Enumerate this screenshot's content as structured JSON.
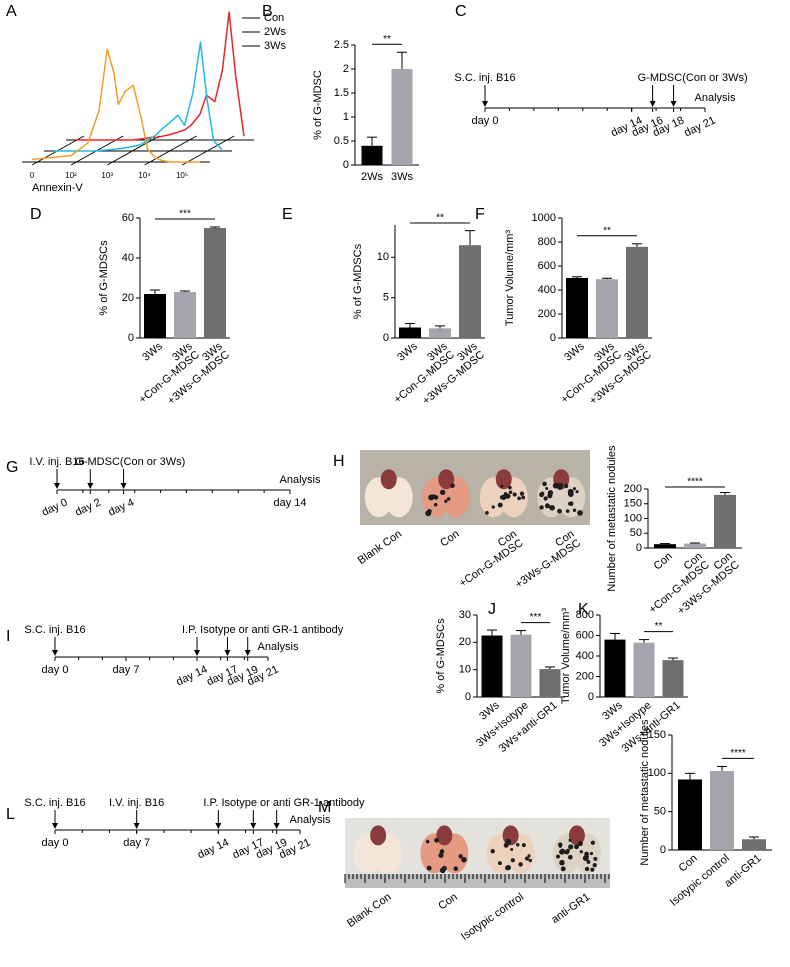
{
  "chart_data": [
    {
      "type": "line",
      "panel": "A",
      "xlabel": "Annexin-V",
      "xscale": "symlog",
      "xlim": [
        0,
        300000
      ],
      "ylim": [
        0,
        100
      ],
      "grid": true,
      "legend": "top-right",
      "xticks": [
        0,
        {
          "value": 100,
          "label": "10²"
        },
        {
          "value": 1000,
          "label": "10³"
        },
        {
          "value": 10000,
          "label": "10⁴"
        },
        {
          "value": 100000,
          "label": "10⁵"
        }
      ],
      "x": [
        0,
        100,
        300,
        600,
        1000,
        1500,
        2000,
        3000,
        5000,
        8000,
        12000,
        20000,
        30000,
        50000,
        80000,
        120000,
        180000,
        300000
      ],
      "series": [
        {
          "name": "Con",
          "color": "#e8262a",
          "values": [
            0,
            0,
            0,
            1,
            2,
            2,
            3,
            4,
            6,
            8,
            12,
            20,
            35,
            30,
            55,
            100,
            50,
            3
          ]
        },
        {
          "name": "2Ws",
          "color": "#22b8e6",
          "values": [
            0,
            0,
            1,
            2,
            3,
            4,
            5,
            8,
            12,
            18,
            22,
            28,
            20,
            45,
            85,
            40,
            8,
            1
          ]
        },
        {
          "name": "3Ws",
          "color": "#f29d2a",
          "values": [
            2,
            5,
            15,
            40,
            88,
            70,
            45,
            55,
            60,
            35,
            10,
            3,
            1,
            0,
            0,
            0,
            0,
            0
          ]
        }
      ]
    },
    {
      "type": "bar",
      "panel": "B",
      "ylabel": "% of G-MDSC",
      "categories": [
        [
          "2Ws"
        ],
        [
          "3Ws"
        ]
      ],
      "values": [
        0.4,
        2.0
      ],
      "errors": [
        0.18,
        0.35
      ],
      "colors": [
        "#000000",
        "#a5a5ad"
      ],
      "ylim": [
        0,
        2.5
      ],
      "yticks": [
        0,
        0.5,
        1,
        1.5,
        2,
        2.5
      ],
      "significance": [
        {
          "label": "**",
          "between": [
            0,
            1
          ]
        }
      ]
    },
    {
      "type": "bar",
      "panel": "D",
      "ylabel": "% of G-MDSCs",
      "categories": [
        [
          "3Ws"
        ],
        [
          "3Ws",
          "+Con-G-MDSC"
        ],
        [
          "3Ws",
          "+3Ws-G-MDSC"
        ]
      ],
      "values": [
        22,
        23,
        55
      ],
      "errors": [
        2,
        0.5,
        0.5
      ],
      "colors": [
        "#000000",
        "#a5a5ad",
        "#6f6f6f"
      ],
      "ylim": [
        0,
        60
      ],
      "yticks": [
        0,
        20,
        40,
        60
      ],
      "significance": [
        {
          "label": "***",
          "between": [
            0,
            2
          ]
        }
      ]
    },
    {
      "type": "bar",
      "panel": "E",
      "ylabel": "% of G-MDSCs",
      "categories": [
        [
          "3Ws"
        ],
        [
          "3Ws",
          "+Con-G-MDSC"
        ],
        [
          "3Ws",
          "+3Ws-G-MDSC"
        ]
      ],
      "values": [
        1.3,
        1.2,
        11.5
      ],
      "errors": [
        0.5,
        0.3,
        1.8
      ],
      "colors": [
        "#000000",
        "#a5a5ad",
        "#6f6f6f"
      ],
      "ylim": [
        0,
        14
      ],
      "yticks": [
        0,
        5,
        10
      ],
      "significance": [
        {
          "label": "**",
          "between": [
            0,
            2
          ]
        }
      ]
    },
    {
      "type": "bar",
      "panel": "F",
      "ylabel": "Tumor Volume/mm³",
      "categories": [
        [
          "3Ws"
        ],
        [
          "3Ws",
          "+Con-G-MDSC"
        ],
        [
          "3Ws",
          "+3Ws-G-MDSC"
        ]
      ],
      "values": [
        500,
        490,
        760
      ],
      "errors": [
        10,
        8,
        25
      ],
      "colors": [
        "#000000",
        "#a5a5ad",
        "#6f6f6f"
      ],
      "ylim": [
        0,
        1000
      ],
      "yticks": [
        0,
        200,
        400,
        600,
        800,
        1000
      ],
      "significance": [
        {
          "label": "**",
          "between": [
            0,
            2
          ]
        }
      ]
    },
    {
      "type": "bar",
      "ylabel": "Number of metastatic nodules",
      "categories": [
        [
          "Con"
        ],
        [
          "Con",
          "+Con-G-MDSC"
        ],
        [
          "Con",
          "+3Ws-G-MDSC"
        ]
      ],
      "values": [
        13,
        15,
        180
      ],
      "errors": [
        2,
        2,
        8
      ],
      "colors": [
        "#000000",
        "#a5a5ad",
        "#6f6f6f"
      ],
      "ylim": [
        0,
        200
      ],
      "yticks": [
        0,
        50,
        100,
        150,
        200
      ],
      "significance": [
        {
          "label": "****",
          "between": [
            0,
            2
          ]
        }
      ]
    },
    {
      "type": "bar",
      "panel": "J",
      "ylabel": "% of G-MDSCs",
      "categories": [
        [
          "3Ws"
        ],
        [
          "3Ws+Isotype"
        ],
        [
          "3Ws+anti-GR1"
        ]
      ],
      "values": [
        22.5,
        22.8,
        10.2
      ],
      "errors": [
        2,
        1.5,
        0.8
      ],
      "colors": [
        "#000000",
        "#a5a5ad",
        "#6f6f6f"
      ],
      "ylim": [
        0,
        30
      ],
      "yticks": [
        0,
        10,
        20,
        30
      ],
      "significance": [
        {
          "label": "***",
          "between": [
            1,
            2
          ]
        }
      ]
    },
    {
      "type": "bar",
      "panel": "K",
      "ylabel": "Tumor Volume/mm³",
      "categories": [
        [
          "3Ws"
        ],
        [
          "3Ws+Isotype"
        ],
        [
          "3Ws+anti-GR1"
        ]
      ],
      "values": [
        560,
        530,
        360
      ],
      "errors": [
        60,
        30,
        20
      ],
      "colors": [
        "#000000",
        "#a5a5ad",
        "#6f6f6f"
      ],
      "ylim": [
        0,
        800
      ],
      "yticks": [
        0,
        200,
        400,
        600,
        800
      ],
      "significance": [
        {
          "label": "**",
          "between": [
            1,
            2
          ]
        }
      ]
    },
    {
      "type": "bar",
      "ylabel": "Number of metastatic nodules",
      "categories": [
        [
          "Con"
        ],
        [
          "Isotypic control"
        ],
        [
          "anti-GR1"
        ]
      ],
      "values": [
        92,
        103,
        14
      ],
      "errors": [
        8,
        6,
        3
      ],
      "colors": [
        "#000000",
        "#a5a5ad",
        "#6f6f6f"
      ],
      "ylim": [
        0,
        150
      ],
      "yticks": [
        0,
        50,
        100,
        150
      ],
      "significance": [
        {
          "label": "****",
          "between": [
            1,
            2
          ]
        }
      ]
    }
  ],
  "timelines": [
    {
      "panel": "C",
      "xlim": [
        0,
        21
      ],
      "end_label": "Analysis",
      "ticks": [
        {
          "value": 0,
          "label": "day 0"
        },
        {
          "value": 14,
          "label": "day 14"
        },
        {
          "value": 16,
          "label": "day 16"
        },
        {
          "value": 18,
          "label": "day 18"
        },
        {
          "value": 21,
          "label": "day 21"
        }
      ],
      "events": [
        {
          "label": "S.C. inj. B16",
          "days": [
            0
          ]
        },
        {
          "label": "G-MDSC(Con or 3Ws)",
          "days": [
            16,
            18
          ]
        }
      ]
    },
    {
      "panel": "G",
      "xlim": [
        0,
        14
      ],
      "end_label": "Analysis",
      "ticks": [
        {
          "value": 0,
          "label": "day 0"
        },
        {
          "value": 2,
          "label": "day 2"
        },
        {
          "value": 4,
          "label": "day 4"
        },
        {
          "value": 14,
          "label": "day 14"
        }
      ],
      "events": [
        {
          "label": "I.V. inj. B16",
          "days": [
            0
          ]
        },
        {
          "label": "G-MDSC(Con or 3Ws)",
          "days": [
            2,
            4
          ]
        }
      ]
    },
    {
      "panel": "I",
      "xlim": [
        0,
        21
      ],
      "end_label": "Analysis",
      "ticks": [
        {
          "value": 0,
          "label": "day 0"
        },
        {
          "value": 7,
          "label": "day 7"
        },
        {
          "value": 14,
          "label": "day 14"
        },
        {
          "value": 17,
          "label": "day 17"
        },
        {
          "value": 19,
          "label": "day 19"
        },
        {
          "value": 21,
          "label": "day 21"
        }
      ],
      "events": [
        {
          "label": "S.C. inj. B16",
          "days": [
            0
          ]
        },
        {
          "label": "I.P. Isotype or anti GR-1 antibody",
          "days": [
            14,
            17,
            19
          ]
        }
      ]
    },
    {
      "panel": "L",
      "xlim": [
        0,
        21
      ],
      "end_label": "Analysis",
      "ticks": [
        {
          "value": 0,
          "label": "day 0"
        },
        {
          "value": 7,
          "label": "day 7"
        },
        {
          "value": 14,
          "label": "day 14"
        },
        {
          "value": 17,
          "label": "day 17"
        },
        {
          "value": 19,
          "label": "day 19"
        },
        {
          "value": 21,
          "label": "day 21"
        }
      ],
      "events": [
        {
          "label": "S.C. inj. B16",
          "days": [
            0
          ]
        },
        {
          "label": "I.V. inj. B16",
          "days": [
            7
          ]
        },
        {
          "label": "I.P. Isotype or anti GR-1 antibody",
          "days": [
            14,
            17,
            19
          ]
        }
      ]
    }
  ],
  "photos": [
    {
      "panel": "H",
      "labels": [
        [
          "Blank Con"
        ],
        [
          "Con"
        ],
        [
          "Con",
          "+Con-G-MDSC"
        ],
        [
          "Con",
          "+3Ws-G-MDSC"
        ]
      ]
    },
    {
      "panel": "M",
      "labels": [
        [
          "Blank Con"
        ],
        [
          "Con"
        ],
        [
          "Isotypic control"
        ],
        [
          "anti-GR1"
        ]
      ]
    }
  ]
}
